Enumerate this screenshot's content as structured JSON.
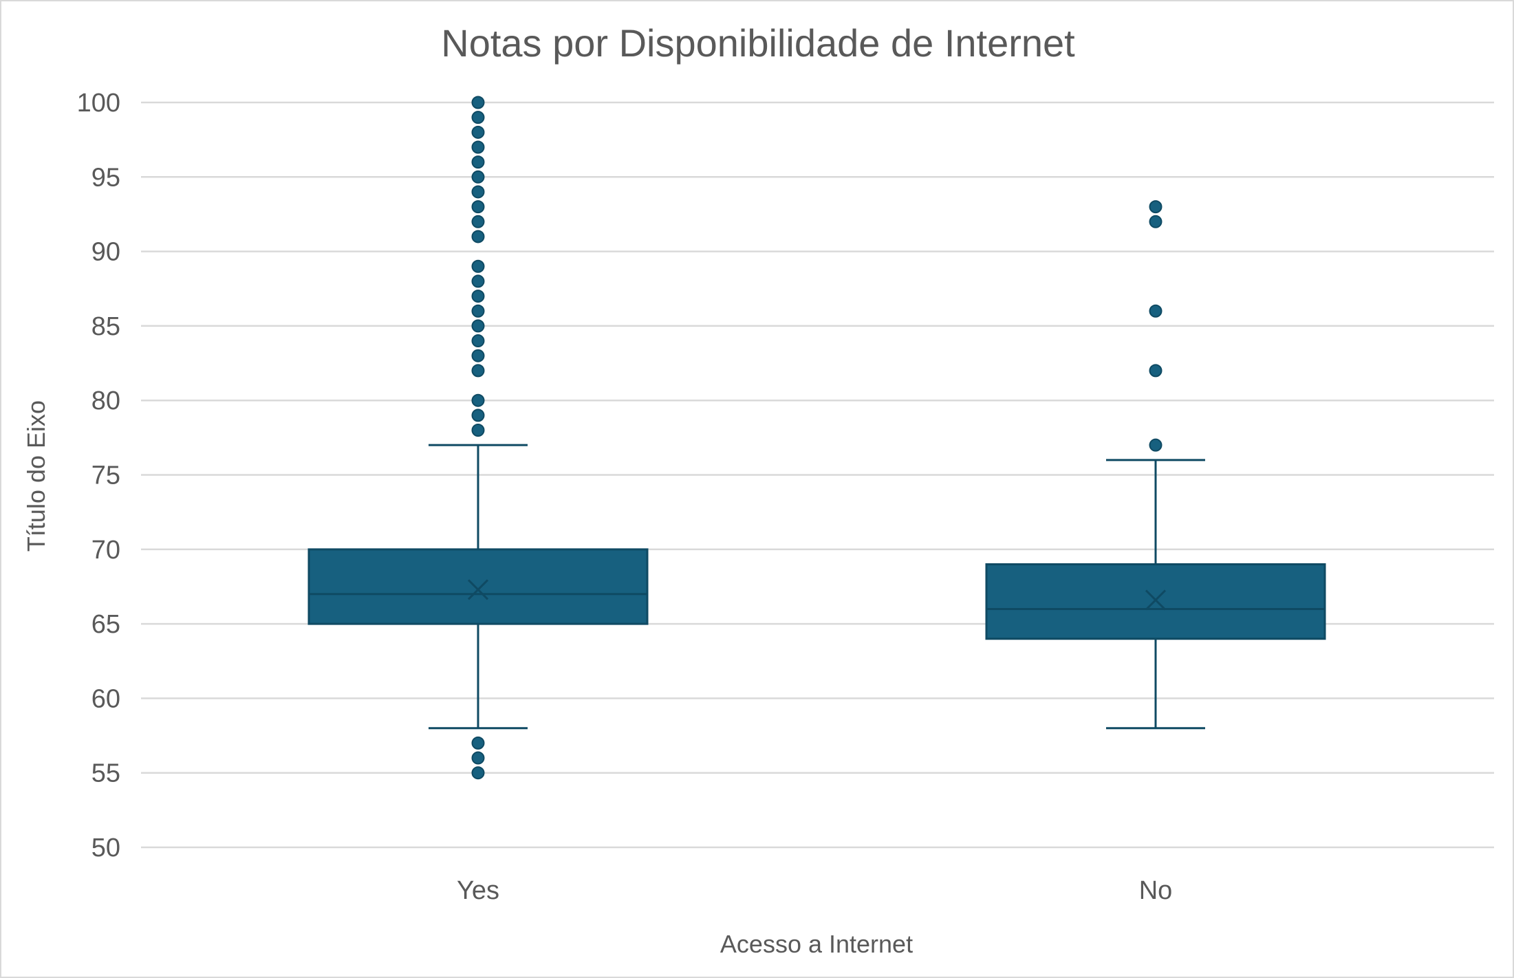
{
  "chart_data": {
    "type": "boxplot",
    "title": "Notas por Disponibilidade de Internet",
    "xlabel": "Acesso a Internet",
    "ylabel": "Título do Eixo",
    "ylim": [
      50,
      100
    ],
    "yticks": [
      50,
      55,
      60,
      65,
      70,
      75,
      80,
      85,
      90,
      95,
      100
    ],
    "grid": true,
    "legend": "none",
    "color": "#17607f",
    "categories": [
      "Yes",
      "No"
    ],
    "boxes": [
      {
        "category": "Yes",
        "min": 58,
        "q1": 65,
        "median": 67,
        "q3": 70,
        "max": 77,
        "mean": 67.3,
        "outliers": [
          55,
          56,
          57,
          78,
          79,
          80,
          82,
          83,
          84,
          85,
          86,
          87,
          88,
          89,
          91,
          92,
          93,
          94,
          95,
          96,
          97,
          98,
          99,
          100
        ]
      },
      {
        "category": "No",
        "min": 58,
        "q1": 64,
        "median": 66,
        "q3": 69,
        "max": 76,
        "mean": 66.6,
        "outliers": [
          77,
          82,
          86,
          92,
          93
        ]
      }
    ]
  }
}
